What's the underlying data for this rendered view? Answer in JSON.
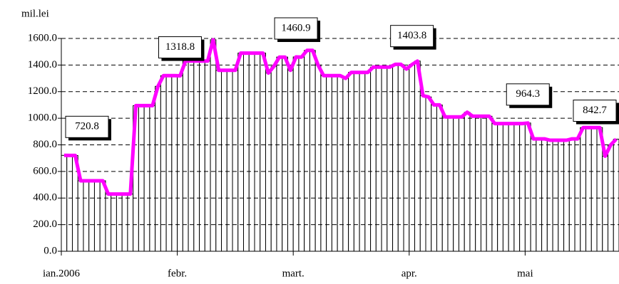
{
  "chart_data": {
    "type": "bar_line",
    "y_label": "mil.lei",
    "categories": [
      "ian.2006",
      null,
      null,
      null,
      null,
      null,
      null,
      null,
      null,
      null,
      null,
      null,
      null,
      null,
      null,
      null,
      null,
      null,
      null,
      null,
      null,
      "febr.",
      null,
      null,
      null,
      null,
      null,
      null,
      null,
      null,
      null,
      null,
      null,
      null,
      null,
      null,
      null,
      null,
      null,
      null,
      null,
      null,
      "mart.",
      null,
      null,
      null,
      null,
      null,
      null,
      null,
      null,
      null,
      null,
      null,
      null,
      null,
      null,
      null,
      null,
      null,
      null,
      null,
      null,
      "apr.",
      null,
      null,
      null,
      null,
      null,
      null,
      null,
      null,
      null,
      null,
      null,
      null,
      null,
      null,
      null,
      null,
      null,
      null,
      null,
      null,
      "mai",
      null,
      null,
      null,
      null,
      null,
      null,
      null,
      null,
      null,
      null,
      null,
      null,
      null,
      null,
      null,
      null
    ],
    "values": [
      720.8,
      720,
      720,
      530,
      530,
      530,
      530,
      530,
      430,
      430,
      430,
      430,
      430,
      1095,
      1095,
      1095,
      1095,
      1240,
      1320,
      1320,
      1320,
      1318.8,
      1430,
      1430,
      1430,
      1430,
      1430,
      1590,
      1360,
      1360,
      1360,
      1360,
      1490,
      1490,
      1490,
      1490,
      1490,
      1340,
      1390,
      1460,
      1460,
      1360,
      1460.9,
      1460,
      1510,
      1510,
      1400,
      1320,
      1320,
      1320,
      1320,
      1300,
      1345,
      1345,
      1345,
      1345,
      1385,
      1385,
      1385,
      1385,
      1405,
      1405,
      1370,
      1403.8,
      1430,
      1170,
      1160,
      1100,
      1100,
      1010,
      1010,
      1010,
      1010,
      1045,
      1015,
      1015,
      1015,
      1015,
      960,
      960,
      960,
      960,
      960,
      960,
      964.3,
      845,
      845,
      845,
      835,
      835,
      835,
      835,
      845,
      845,
      930,
      930,
      930,
      930,
      715,
      800,
      842.7
    ],
    "value_labels": [
      "720.8",
      null,
      null,
      null,
      null,
      null,
      null,
      null,
      null,
      null,
      null,
      null,
      null,
      null,
      null,
      null,
      null,
      null,
      null,
      null,
      null,
      "1318.8",
      null,
      null,
      null,
      null,
      null,
      null,
      null,
      null,
      null,
      null,
      null,
      null,
      null,
      null,
      null,
      null,
      null,
      null,
      null,
      null,
      "1460.9",
      null,
      null,
      null,
      null,
      null,
      null,
      null,
      null,
      null,
      null,
      null,
      null,
      null,
      null,
      null,
      null,
      null,
      null,
      null,
      null,
      "1403.8",
      null,
      null,
      null,
      null,
      null,
      null,
      null,
      null,
      null,
      null,
      null,
      null,
      null,
      null,
      null,
      null,
      null,
      null,
      null,
      null,
      "964.3",
      null,
      null,
      null,
      null,
      null,
      null,
      null,
      null,
      null,
      null,
      null,
      null,
      null,
      null,
      null,
      "842.7"
    ],
    "bar_color": "#ffffff",
    "line_color": "#ff00ff",
    "ylim": [
      0,
      1600
    ],
    "yticks": [
      {
        "value": 0,
        "label": "0.0"
      },
      {
        "value": 200,
        "label": "200.0"
      },
      {
        "value": 400,
        "label": "400.0"
      },
      {
        "value": 600,
        "label": "600.0"
      },
      {
        "value": 800,
        "label": "800.0"
      },
      {
        "value": 1000,
        "label": "1000.0"
      },
      {
        "value": 1200,
        "label": "1200.0"
      },
      {
        "value": 1400,
        "label": "1400.0"
      },
      {
        "value": 1600,
        "label": "1600.0"
      }
    ],
    "grid": true
  }
}
